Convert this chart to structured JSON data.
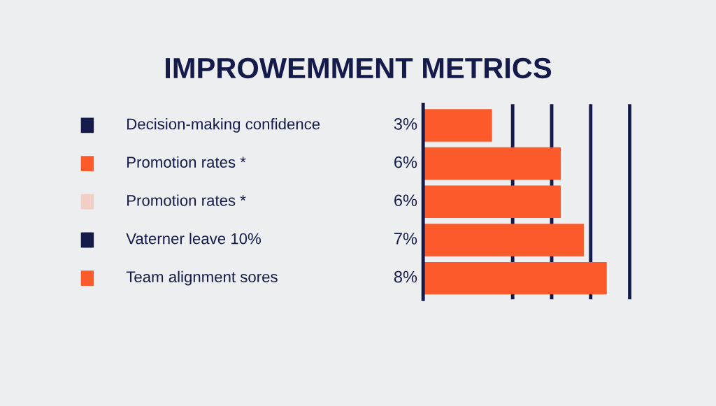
{
  "chart_data": {
    "type": "bar",
    "orientation": "horizontal",
    "title": "IMPROWEMMENT METRICS",
    "categories": [
      "Decision-making confidence",
      "Promotion rates *",
      "Promotion rates *",
      "Vaterner leave 10%",
      "Team alignment sores"
    ],
    "values": [
      3,
      6,
      6,
      7,
      8
    ],
    "color": "#fc5a2a",
    "value_labels": [
      "3%",
      "6%",
      "6%",
      "7%",
      "8%"
    ],
    "ref_lines": [
      {
        "axis": "x",
        "value": 3.9,
        "color": "#141a4a"
      },
      {
        "axis": "x",
        "value": 5.6,
        "color": "#141a4a"
      },
      {
        "axis": "x",
        "value": 7.3,
        "color": "#141a4a"
      },
      {
        "axis": "x",
        "value": 9,
        "color": "#141a4a"
      }
    ]
  }
}
